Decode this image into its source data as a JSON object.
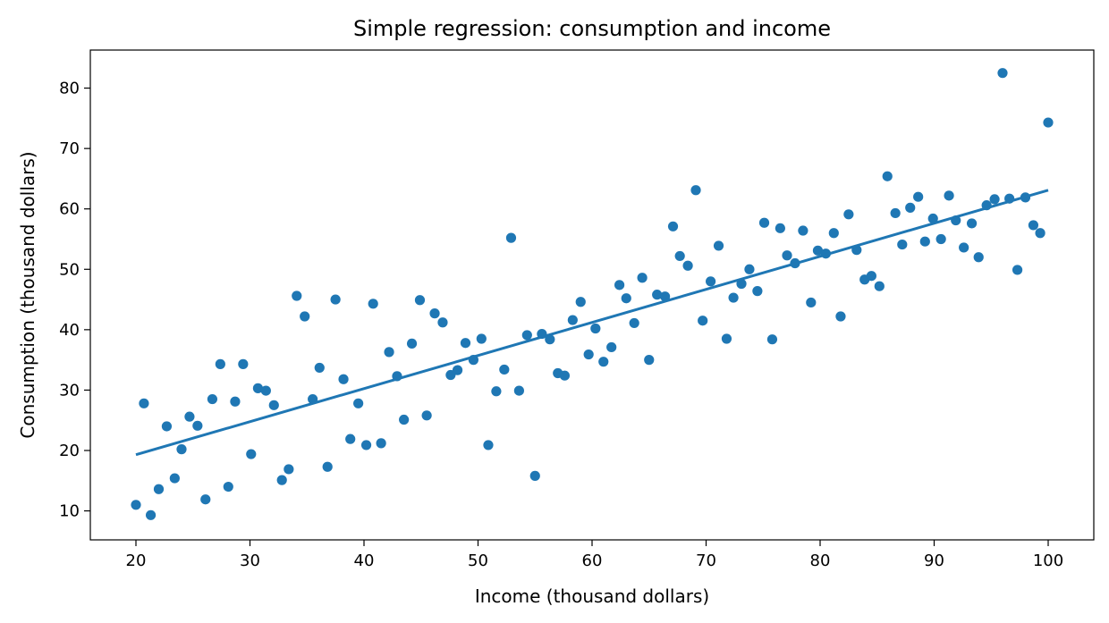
{
  "chart_data": {
    "type": "scatter",
    "title": "Simple regression: consumption and income",
    "xlabel": "Income (thousand dollars)",
    "ylabel": "Consumption (thousand dollars)",
    "xlim": [
      16,
      104
    ],
    "ylim": [
      5.2,
      86.3
    ],
    "xticks": [
      20,
      30,
      40,
      50,
      60,
      70,
      80,
      90,
      100
    ],
    "yticks": [
      10,
      20,
      30,
      40,
      50,
      60,
      70,
      80
    ],
    "grid": false,
    "colors": {
      "points": "#1f77b4",
      "line": "#1f77b4"
    },
    "series": [
      {
        "type": "scatter",
        "x": [
          20.0,
          20.7,
          21.3,
          22.0,
          22.7,
          23.4,
          24.0,
          24.7,
          25.4,
          26.1,
          26.7,
          27.4,
          28.1,
          28.7,
          29.4,
          30.1,
          30.7,
          31.4,
          32.1,
          32.8,
          33.4,
          34.1,
          34.8,
          35.5,
          36.1,
          36.8,
          37.5,
          38.2,
          38.8,
          39.5,
          40.2,
          40.8,
          41.5,
          42.2,
          42.9,
          43.5,
          44.2,
          44.9,
          45.5,
          46.2,
          46.9,
          47.6,
          48.2,
          48.9,
          49.6,
          50.3,
          50.9,
          51.6,
          52.3,
          52.9,
          53.6,
          54.3,
          55.0,
          55.6,
          56.3,
          57.0,
          57.6,
          58.3,
          59.0,
          59.7,
          60.3,
          61.0,
          61.7,
          62.4,
          63.0,
          63.7,
          64.4,
          65.0,
          65.7,
          66.4,
          67.1,
          67.7,
          68.4,
          69.1,
          69.7,
          70.4,
          71.1,
          71.8,
          72.4,
          73.1,
          73.8,
          74.5,
          75.1,
          75.8,
          76.5,
          77.1,
          77.8,
          78.5,
          79.2,
          79.8,
          80.5,
          81.2,
          81.8,
          82.5,
          83.2,
          83.9,
          84.5,
          85.2,
          85.9,
          86.6,
          87.2,
          87.9,
          88.6,
          89.2,
          89.9,
          90.6,
          91.3,
          91.9,
          92.6,
          93.3,
          93.9,
          94.6,
          95.3,
          96.0,
          96.6,
          97.3,
          98.0,
          98.7,
          99.3,
          100.0
        ],
        "y": [
          11.0,
          27.8,
          9.3,
          13.6,
          24.0,
          15.4,
          20.2,
          25.6,
          24.1,
          11.9,
          28.5,
          34.3,
          14.0,
          28.1,
          34.3,
          19.4,
          30.3,
          29.9,
          27.5,
          15.1,
          16.9,
          45.6,
          42.2,
          28.5,
          33.7,
          17.3,
          45.0,
          31.8,
          21.9,
          27.8,
          20.9,
          44.3,
          21.2,
          36.3,
          32.3,
          25.1,
          37.7,
          44.9,
          25.8,
          42.7,
          41.2,
          32.5,
          33.3,
          37.8,
          35.0,
          38.5,
          20.9,
          29.8,
          33.4,
          55.2,
          29.9,
          39.1,
          15.8,
          39.3,
          38.4,
          32.8,
          32.4,
          41.6,
          44.6,
          35.9,
          40.2,
          34.7,
          37.1,
          47.4,
          45.2,
          41.1,
          48.6,
          35.0,
          45.8,
          45.5,
          57.1,
          52.2,
          50.6,
          63.1,
          41.5,
          48.0,
          53.9,
          38.5,
          45.3,
          47.6,
          50.0,
          46.4,
          57.7,
          38.4,
          56.8,
          52.3,
          51.0,
          56.4,
          44.5,
          53.1,
          52.6,
          56.0,
          42.2,
          59.1,
          53.2,
          48.3,
          48.9,
          47.2,
          65.4,
          59.3,
          54.1,
          60.2,
          62.0,
          54.6,
          58.4,
          55.0,
          62.2,
          58.1,
          53.6,
          57.6,
          52.0,
          60.6,
          61.6,
          82.5,
          61.7,
          49.9,
          61.9,
          57.3,
          56.0,
          74.3
        ]
      },
      {
        "type": "line",
        "x": [
          20,
          100
        ],
        "y": [
          19.3,
          63.1
        ]
      }
    ]
  }
}
